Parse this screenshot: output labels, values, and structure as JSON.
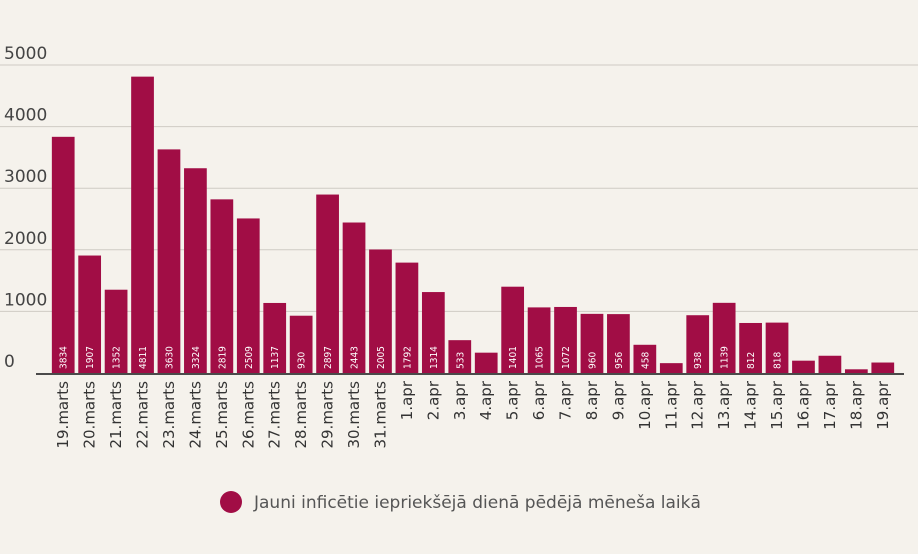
{
  "chart_data": {
    "type": "bar",
    "categories": [
      "19.marts",
      "20.marts",
      "21.marts",
      "22.marts",
      "23.marts",
      "24.marts",
      "25.marts",
      "26.marts",
      "27.marts",
      "28.marts",
      "29.marts",
      "30.marts",
      "31.marts",
      "1.apr",
      "2.apr",
      "3.apr",
      "4.apr",
      "5.apr",
      "6.apr",
      "7.apr",
      "8.apr",
      "9.apr",
      "10.apr",
      "11.apr",
      "12.apr",
      "13.apr",
      "14.apr",
      "15.apr",
      "16.apr",
      "17.apr",
      "18.apr",
      "19.apr"
    ],
    "values": [
      3834,
      1907,
      1352,
      4811,
      3630,
      3324,
      2819,
      2509,
      1137,
      930,
      2897,
      2443,
      2005,
      1792,
      1314,
      533,
      330,
      1401,
      1065,
      1072,
      960,
      956,
      458,
      160,
      938,
      1139,
      812,
      818,
      200,
      280,
      60,
      170
    ],
    "data_labels": [
      "3834",
      "1907",
      "1352",
      "4811",
      "3630",
      "3324",
      "2819",
      "2509",
      "1137",
      "930",
      "2897",
      "2443",
      "2005",
      "1792",
      "1314",
      "533",
      "",
      "1401",
      "1065",
      "1072",
      "960",
      "956",
      "458",
      "",
      "938",
      "1139",
      "812",
      "818",
      "",
      "",
      "",
      ""
    ],
    "series": [
      {
        "name": "Jauni inficētie iepriekšējā dienā pēdējā mēneša laikā"
      }
    ],
    "yticks": [
      "0",
      "1000",
      "2000",
      "3000",
      "4000",
      "5000"
    ],
    "ylim": [
      0,
      5000
    ],
    "grid": true,
    "legend_position": "bottom",
    "colors": {
      "bar": "#a10d45",
      "grid": "#cfcbc4",
      "background": "#f5f2ec"
    }
  }
}
